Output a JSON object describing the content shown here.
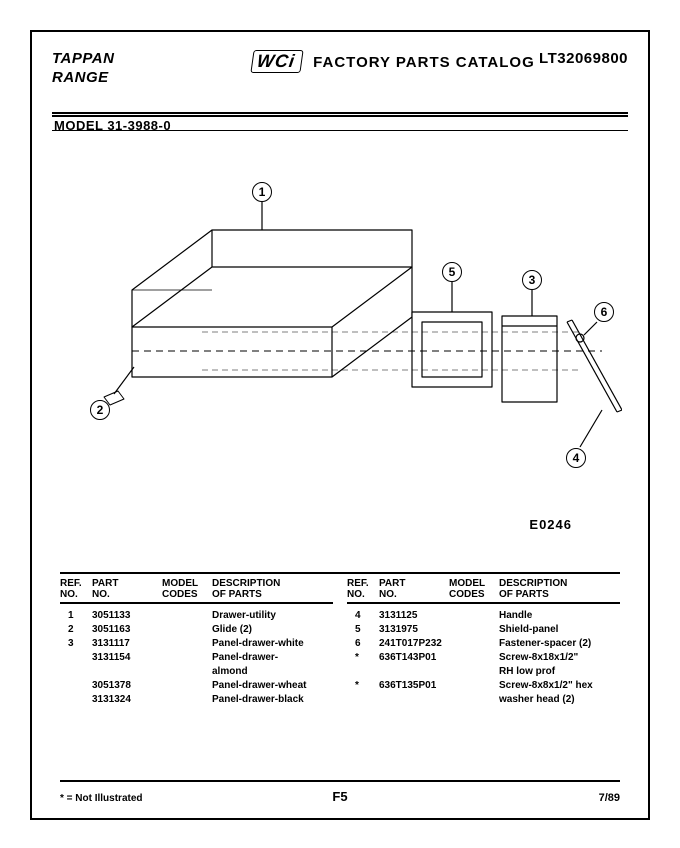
{
  "header": {
    "brand": "TAPPAN",
    "product": "RANGE",
    "wci": "WCi",
    "catalog_title": "FACTORY PARTS CATALOG",
    "catalog_number": "LT32069800",
    "model_label": "MODEL 31-3988-0"
  },
  "diagram": {
    "fig_ref": "E0246",
    "callouts": [
      "1",
      "2",
      "3",
      "4",
      "5",
      "6"
    ]
  },
  "table": {
    "head": {
      "ref": "REF.\nNO.",
      "part": "PART\nNO.",
      "model": "MODEL\nCODES",
      "desc": "DESCRIPTION\nOF PARTS"
    },
    "left_rows": [
      {
        "ref": "1",
        "part": "3051133",
        "model": "",
        "desc": "Drawer-utility"
      },
      {
        "ref": "2",
        "part": "3051163",
        "model": "",
        "desc": "Glide (2)"
      },
      {
        "ref": "3",
        "part": "3131117",
        "model": "",
        "desc": "Panel-drawer-white"
      },
      {
        "ref": "",
        "part": "3131154",
        "model": "",
        "desc": "Panel-drawer-"
      },
      {
        "ref": "",
        "part": "",
        "model": "",
        "desc": "almond"
      },
      {
        "ref": "",
        "part": "3051378",
        "model": "",
        "desc": "Panel-drawer-wheat"
      },
      {
        "ref": "",
        "part": "3131324",
        "model": "",
        "desc": "Panel-drawer-black"
      }
    ],
    "right_rows": [
      {
        "ref": "4",
        "part": "3131125",
        "model": "",
        "desc": "Handle"
      },
      {
        "ref": "5",
        "part": "3131975",
        "model": "",
        "desc": "Shield-panel"
      },
      {
        "ref": "6",
        "part": "241T017P232",
        "model": "",
        "desc": "Fastener-spacer (2)"
      },
      {
        "ref": "*",
        "part": "636T143P01",
        "model": "",
        "desc": "Screw-8x18x1/2\""
      },
      {
        "ref": "",
        "part": "",
        "model": "",
        "desc": "RH low prof"
      },
      {
        "ref": "*",
        "part": "636T135P01",
        "model": "",
        "desc": "Screw-8x8x1/2\" hex"
      },
      {
        "ref": "",
        "part": "",
        "model": "",
        "desc": "washer head (2)"
      }
    ]
  },
  "footer": {
    "note": "* = Not Illustrated",
    "page": "F5",
    "date": "7/89"
  },
  "colors": {
    "ink": "#000000",
    "paper": "#ffffff"
  }
}
